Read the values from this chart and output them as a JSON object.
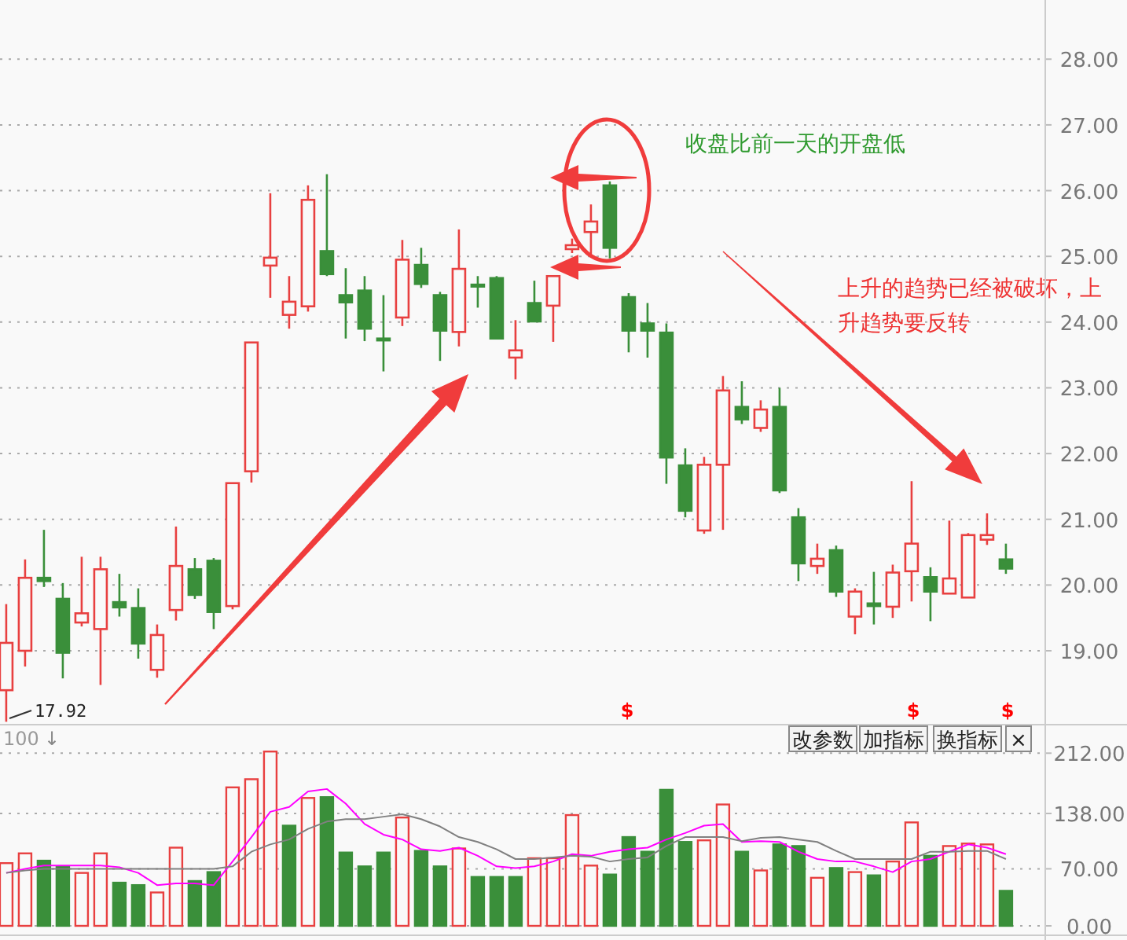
{
  "chart_data": [
    {
      "type": "candlestick",
      "categories": [
        null,
        null,
        null,
        null,
        null,
        null,
        null,
        null,
        null,
        null,
        null,
        null,
        null,
        null,
        null,
        null,
        null,
        null,
        null,
        null,
        null,
        null,
        null,
        null,
        null,
        null,
        null,
        null,
        null,
        null,
        null,
        null,
        null,
        null,
        null,
        null,
        null,
        null,
        null,
        null,
        null,
        null,
        null,
        null,
        null,
        null,
        null,
        null,
        null,
        null,
        null,
        null,
        null,
        null
      ],
      "ohlc": [
        [
          18.4,
          19.71,
          17.92,
          19.12
        ],
        [
          19.0,
          20.39,
          18.76,
          20.11
        ],
        [
          20.11,
          20.84,
          19.97,
          20.06
        ],
        [
          19.79,
          20.03,
          18.58,
          18.97
        ],
        [
          19.43,
          20.43,
          19.37,
          19.57
        ],
        [
          19.33,
          20.43,
          18.48,
          20.24
        ],
        [
          19.74,
          20.17,
          19.52,
          19.66
        ],
        [
          19.65,
          19.95,
          18.88,
          19.11
        ],
        [
          18.71,
          19.4,
          18.59,
          19.24
        ],
        [
          19.62,
          20.89,
          19.46,
          20.29
        ],
        [
          20.24,
          20.41,
          19.79,
          19.85
        ],
        [
          20.37,
          20.41,
          19.33,
          19.59
        ],
        [
          19.68,
          21.55,
          19.63,
          21.55
        ],
        [
          21.73,
          23.69,
          21.56,
          23.69
        ],
        [
          24.86,
          25.96,
          24.37,
          24.98
        ],
        [
          24.11,
          24.7,
          23.9,
          24.31
        ],
        [
          24.24,
          26.08,
          24.16,
          25.86
        ],
        [
          25.08,
          26.25,
          24.7,
          24.73
        ],
        [
          24.41,
          24.82,
          23.75,
          24.3
        ],
        [
          24.48,
          24.7,
          23.71,
          23.9
        ],
        [
          23.75,
          24.41,
          23.25,
          23.73
        ],
        [
          24.07,
          25.25,
          23.94,
          24.95
        ],
        [
          24.87,
          25.13,
          24.52,
          24.58
        ],
        [
          24.41,
          24.46,
          23.41,
          23.87
        ],
        [
          23.85,
          25.41,
          23.63,
          24.81
        ],
        [
          24.57,
          24.7,
          24.22,
          24.54
        ],
        [
          24.67,
          24.7,
          23.75,
          23.75
        ],
        [
          23.46,
          24.03,
          23.13,
          23.57
        ],
        [
          24.29,
          24.63,
          24.01,
          24.01
        ],
        [
          24.25,
          24.7,
          23.7,
          24.7
        ],
        [
          25.11,
          25.27,
          25.05,
          25.17
        ],
        [
          25.37,
          25.79,
          25.03,
          25.53
        ],
        [
          26.08,
          26.14,
          24.97,
          25.13
        ],
        [
          24.38,
          24.44,
          23.54,
          23.87
        ],
        [
          23.98,
          24.29,
          23.46,
          23.87
        ],
        [
          23.84,
          23.98,
          21.54,
          21.94
        ],
        [
          21.82,
          22.08,
          21.03,
          21.13
        ],
        [
          20.83,
          21.95,
          20.78,
          21.83
        ],
        [
          21.83,
          23.18,
          20.84,
          22.96
        ],
        [
          22.71,
          23.1,
          22.45,
          22.52
        ],
        [
          22.39,
          22.81,
          22.33,
          22.67
        ],
        [
          22.71,
          23.0,
          21.4,
          21.44
        ],
        [
          21.03,
          21.17,
          20.06,
          20.33
        ],
        [
          20.29,
          20.63,
          20.17,
          20.4
        ],
        [
          20.53,
          20.6,
          19.82,
          19.9
        ],
        [
          19.52,
          19.95,
          19.25,
          19.9
        ],
        [
          19.72,
          20.2,
          19.4,
          19.68
        ],
        [
          19.67,
          20.31,
          19.5,
          20.19
        ],
        [
          20.21,
          21.58,
          19.75,
          20.63
        ],
        [
          20.12,
          20.27,
          19.45,
          19.9
        ],
        [
          19.87,
          20.98,
          19.87,
          20.1
        ],
        [
          19.81,
          20.79,
          19.81,
          20.76
        ],
        [
          20.69,
          21.09,
          20.61,
          20.76
        ],
        [
          20.39,
          20.63,
          20.17,
          20.25
        ]
      ],
      "colors": [
        "#e84040",
        "#e84040",
        "#3a8f3a",
        "#3a8f3a",
        "#e84040",
        "#e84040",
        "#3a8f3a",
        "#3a8f3a",
        "#e84040",
        "#e84040",
        "#3a8f3a",
        "#3a8f3a",
        "#e84040",
        "#e84040",
        "#e84040",
        "#e84040",
        "#e84040",
        "#3a8f3a",
        "#3a8f3a",
        "#3a8f3a",
        "#3a8f3a",
        "#e84040",
        "#3a8f3a",
        "#3a8f3a",
        "#e84040",
        "#3a8f3a",
        "#3a8f3a",
        "#e84040",
        "#3a8f3a",
        "#e84040",
        "#e84040",
        "#e84040",
        "#3a8f3a",
        "#3a8f3a",
        "#3a8f3a",
        "#3a8f3a",
        "#3a8f3a",
        "#e84040",
        "#e84040",
        "#3a8f3a",
        "#e84040",
        "#3a8f3a",
        "#3a8f3a",
        "#e84040",
        "#3a8f3a",
        "#e84040",
        "#3a8f3a",
        "#e84040",
        "#e84040",
        "#3a8f3a",
        "#e84040",
        "#e84040",
        "#e84040",
        "#3a8f3a"
      ],
      "ylim": [
        17.9,
        28.9
      ],
      "yticks": [
        {
          "value": 19,
          "label": "19.00"
        },
        {
          "value": 20,
          "label": "20.00"
        },
        {
          "value": 21,
          "label": "21.00"
        },
        {
          "value": 22,
          "label": "22.00"
        },
        {
          "value": 23,
          "label": "23.00"
        },
        {
          "value": 24,
          "label": "24.00"
        },
        {
          "value": 25,
          "label": "25.00"
        },
        {
          "value": 26,
          "label": "26.00"
        },
        {
          "value": 27,
          "label": "27.00"
        },
        {
          "value": 28,
          "label": "28.00"
        }
      ],
      "grid": "y",
      "annotations": [
        "17.92",
        "收盘比前一天的开盘低",
        "上升的趋势已经被破坏，上升趋势要反转",
        "$",
        "$",
        "$"
      ]
    },
    {
      "type": "bar",
      "categories": [
        null,
        null,
        null,
        null,
        null,
        null,
        null,
        null,
        null,
        null,
        null,
        null,
        null,
        null,
        null,
        null,
        null,
        null,
        null,
        null,
        null,
        null,
        null,
        null,
        null,
        null,
        null,
        null,
        null,
        null,
        null,
        null,
        null,
        null,
        null,
        null,
        null,
        null,
        null,
        null,
        null,
        null,
        null,
        null,
        null,
        null,
        null,
        null,
        null,
        null,
        null,
        null,
        null,
        null
      ],
      "series": [
        {
          "type": "bar",
          "colors": [
            "#e84040",
            "#e84040",
            "#3a8f3a",
            "#3a8f3a",
            "#e84040",
            "#e84040",
            "#3a8f3a",
            "#3a8f3a",
            "#e84040",
            "#e84040",
            "#3a8f3a",
            "#3a8f3a",
            "#e84040",
            "#e84040",
            "#e84040",
            "#3a8f3a",
            "#e84040",
            "#3a8f3a",
            "#3a8f3a",
            "#3a8f3a",
            "#3a8f3a",
            "#e84040",
            "#3a8f3a",
            "#3a8f3a",
            "#e84040",
            "#3a8f3a",
            "#3a8f3a",
            "#3a8f3a",
            "#e84040",
            "#e84040",
            "#e84040",
            "#e84040",
            "#3a8f3a",
            "#3a8f3a",
            "#3a8f3a",
            "#3a8f3a",
            "#3a8f3a",
            "#e84040",
            "#e84040",
            "#3a8f3a",
            "#e84040",
            "#3a8f3a",
            "#3a8f3a",
            "#e84040",
            "#3a8f3a",
            "#e84040",
            "#3a8f3a",
            "#e84040",
            "#e84040",
            "#3a8f3a",
            "#e84040",
            "#e84040",
            "#e84040",
            "#3a8f3a"
          ],
          "values": [
            77,
            89,
            80,
            73,
            65,
            89,
            53,
            50,
            41,
            96,
            55,
            66,
            170,
            180,
            214,
            123,
            157,
            158,
            90,
            73,
            90,
            133,
            92,
            73,
            95,
            60,
            60,
            60,
            83,
            83,
            136,
            74,
            63,
            109,
            91,
            167,
            103,
            105,
            149,
            91,
            68,
            100,
            98,
            59,
            71,
            66,
            62,
            79,
            127,
            86,
            98,
            101,
            100,
            43
          ]
        },
        {
          "type": "line",
          "color": "#ff00ff",
          "values": [
            65,
            70,
            74,
            74,
            74,
            74,
            72,
            65,
            50,
            52,
            52,
            50,
            79,
            109,
            140,
            146,
            165,
            168,
            150,
            125,
            112,
            106,
            94,
            92,
            96,
            86,
            73,
            71,
            73,
            79,
            88,
            86,
            91,
            94,
            96,
            106,
            114,
            123,
            125,
            103,
            104,
            103,
            91,
            82,
            79,
            79,
            73,
            66,
            79,
            82,
            91,
            100,
            96,
            88
          ]
        },
        {
          "type": "line",
          "color": "#808080",
          "values": [
            65,
            68,
            70,
            70,
            70,
            70,
            70,
            70,
            70,
            70,
            70,
            70,
            73,
            91,
            100,
            106,
            119,
            128,
            131,
            131,
            134,
            137,
            131,
            122,
            109,
            103,
            94,
            82,
            82,
            84,
            86,
            85,
            79,
            82,
            84,
            98,
            109,
            109,
            109,
            104,
            108,
            109,
            106,
            103,
            92,
            82,
            82,
            82,
            82,
            91,
            91,
            92,
            92,
            82
          ]
        }
      ],
      "ylim": [
        0,
        247
      ],
      "yticks": [
        {
          "value": 0,
          "label": "0.00"
        },
        {
          "value": 70,
          "label": "70.00"
        },
        {
          "value": 138,
          "label": "138.00"
        },
        {
          "value": 212,
          "label": "212.00"
        }
      ],
      "grid": "y",
      "annotations": [
        "100",
        "↓",
        "改参数",
        "加指标",
        "换指标",
        "×"
      ]
    }
  ]
}
